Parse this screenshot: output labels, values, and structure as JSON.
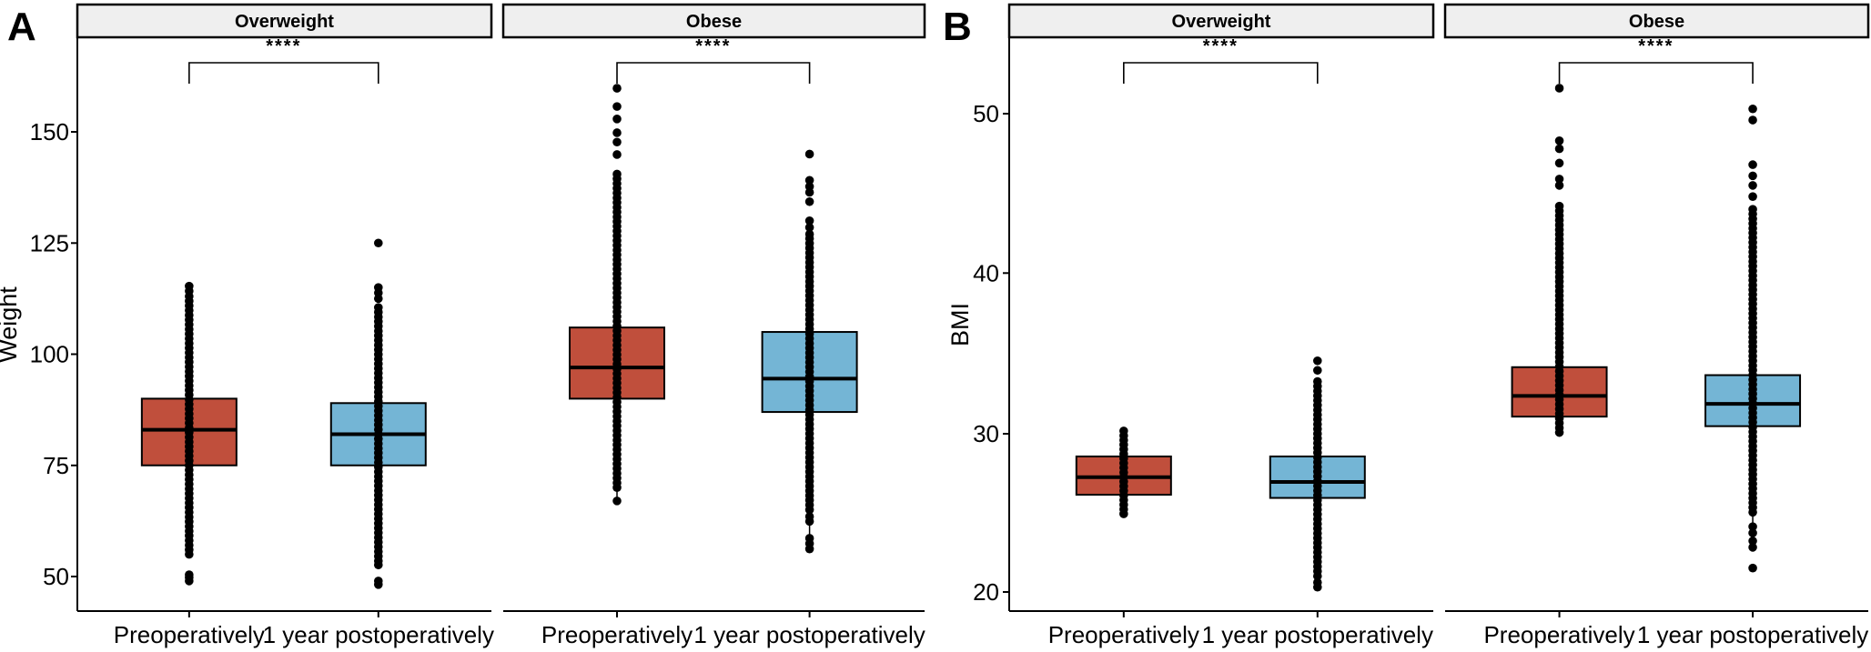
{
  "style": {
    "preop_color": "#c04f3c",
    "postop_color": "#74b5d5",
    "strip_fill": "#efefef",
    "point_color": "#000000"
  },
  "chart_data": [
    {
      "type": "boxplot",
      "panel_label": "A",
      "ylabel": "Weight",
      "yticks": [
        150,
        125,
        100,
        75,
        50
      ],
      "ylim": [
        42,
        171
      ],
      "categories": [
        "Preoperatively",
        "1 year postoperatively"
      ],
      "facets": [
        {
          "label": "Overweight",
          "significance": "****",
          "boxes": [
            {
              "category": "Preoperatively",
              "color": "#c04f3c",
              "q1": 75,
              "median": 83,
              "q3": 90,
              "points_dense": [
                56,
                113
              ],
              "outliers": [
                49,
                49.8,
                50.4,
                55,
                114.2,
                115.3
              ]
            },
            {
              "category": "1 year postoperatively",
              "color": "#74b5d5",
              "q1": 75,
              "median": 82,
              "q3": 89,
              "points_dense": [
                53.5,
                110.5
              ],
              "outliers": [
                48.2,
                49,
                52.6,
                112.5,
                113.8,
                115,
                125
              ]
            }
          ]
        },
        {
          "label": "Obese",
          "significance": "****",
          "boxes": [
            {
              "category": "Preoperatively",
              "color": "#c04f3c",
              "q1": 90,
              "median": 97,
              "q3": 106,
              "points_dense": [
                70,
                140.5
              ],
              "whisker": [
                70,
                67
              ],
              "outliers": [
                67,
                144.9,
                147.7,
                149.8,
                152.9,
                155.7,
                159.8
              ]
            },
            {
              "category": "1 year postoperatively",
              "color": "#74b5d5",
              "q1": 87,
              "median": 94.5,
              "q3": 105,
              "points_dense": [
                65,
                126
              ],
              "whisker": [
                63.5,
                58.5
              ],
              "outliers": [
                56.2,
                57.4,
                58.6,
                62.4,
                63.5,
                127,
                128.5,
                130,
                134.3,
                136.4,
                137.7,
                139.1,
                145
              ]
            }
          ]
        }
      ]
    },
    {
      "type": "boxplot",
      "panel_label": "B",
      "ylabel": "BMI",
      "yticks": [
        50,
        40,
        30,
        20
      ],
      "ylim": [
        18.5,
        55
      ],
      "categories": [
        "Preoperatively",
        "1 year postoperatively"
      ],
      "facets": [
        {
          "label": "Overweight",
          "significance": "****",
          "boxes": [
            {
              "category": "Preoperatively",
              "color": "#c04f3c",
              "q1": 26.1,
              "median": 27.2,
              "q3": 28.5,
              "points_dense": [
                24.9,
                30.1
              ],
              "outliers": []
            },
            {
              "category": "1 year postoperatively",
              "color": "#74b5d5",
              "q1": 25.9,
              "median": 26.9,
              "q3": 28.5,
              "points_dense": [
                21.0,
                33.2
              ],
              "outliers": [
                34.5,
                33.9,
                20.6,
                20.3
              ]
            }
          ]
        },
        {
          "label": "Obese",
          "significance": "****",
          "boxes": [
            {
              "category": "Preoperatively",
              "color": "#c04f3c",
              "q1": 31.0,
              "median": 32.3,
              "q3": 34.1,
              "points_dense": [
                30.0,
                44.2
              ],
              "outliers": [
                45.5,
                45.9,
                46.9,
                47.8,
                48.3,
                51.6
              ]
            },
            {
              "category": "1 year postoperatively",
              "color": "#74b5d5",
              "q1": 30.4,
              "median": 31.8,
              "q3": 33.6,
              "points_dense": [
                25.0,
                44.0
              ],
              "whisker": [
                25.0,
                23.3
              ],
              "outliers": [
                50.3,
                49.6,
                46.8,
                46.1,
                45.5,
                44.8,
                24.1,
                23.7,
                23.2,
                22.8,
                21.5
              ]
            }
          ]
        }
      ]
    }
  ]
}
